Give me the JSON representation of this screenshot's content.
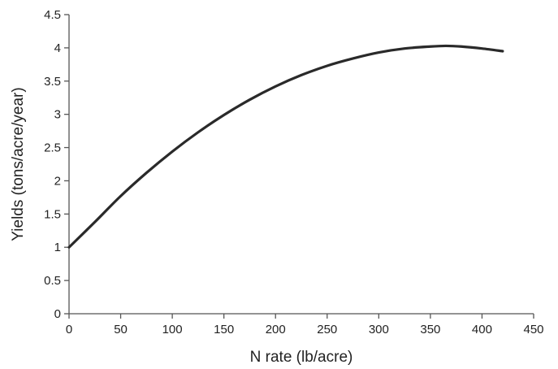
{
  "chart_data": {
    "type": "line",
    "xlabel": "N rate (lb/acre)",
    "ylabel": "Yields (tons/acre/year)",
    "xlim": [
      0,
      450
    ],
    "ylim": [
      0,
      4.5
    ],
    "x_ticks": [
      "0",
      "50",
      "100",
      "150",
      "200",
      "250",
      "300",
      "350",
      "400",
      "450"
    ],
    "y_ticks": [
      "0",
      "0.5",
      "1",
      "1.5",
      "2",
      "2.5",
      "3",
      "3.5",
      "4",
      "4.5"
    ],
    "grid": false,
    "legend": false,
    "line_color": "#2a2a2a",
    "series": [
      {
        "x": [
          0,
          25,
          50,
          75,
          100,
          125,
          150,
          175,
          200,
          225,
          250,
          275,
          300,
          325,
          350,
          365,
          380,
          400,
          420
        ],
        "y": [
          1.0,
          1.38,
          1.77,
          2.12,
          2.44,
          2.73,
          2.99,
          3.22,
          3.42,
          3.59,
          3.73,
          3.84,
          3.93,
          3.99,
          4.02,
          4.03,
          4.02,
          3.99,
          3.95
        ]
      }
    ]
  }
}
